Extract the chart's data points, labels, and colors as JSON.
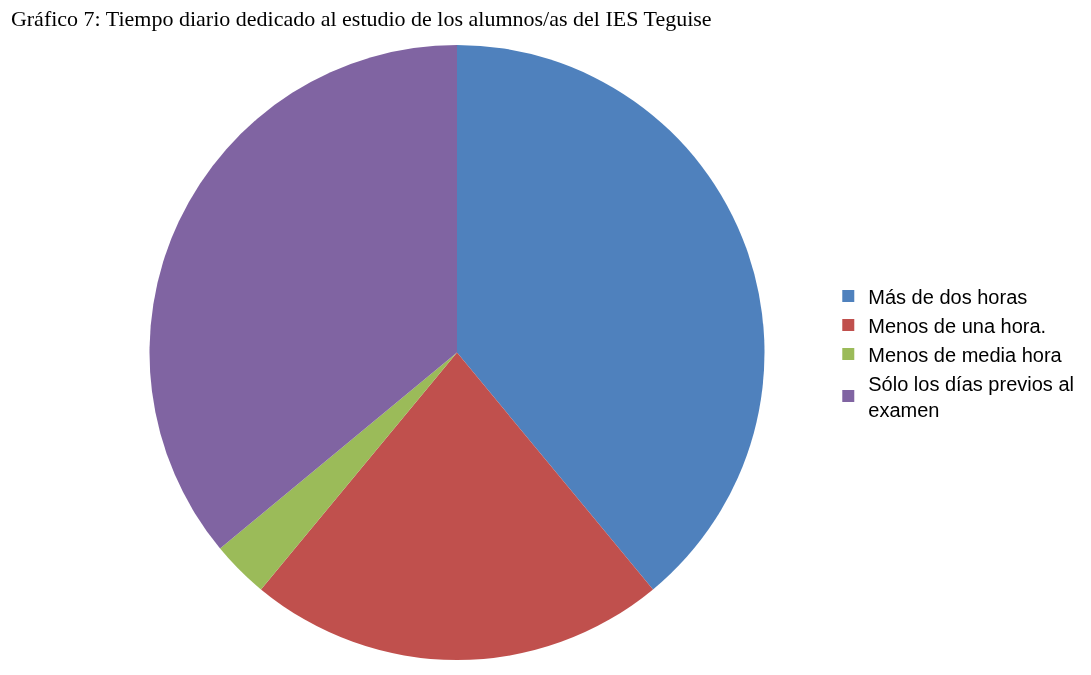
{
  "chart_data": {
    "type": "pie",
    "title": "Gráfico 7: Tiempo diario dedicado al estudio de los alumnos/as del IES Teguise",
    "categories": [
      "Más de dos horas",
      "Menos de una hora.",
      "Menos de media hora",
      "Sólo los días previos al examen"
    ],
    "values": [
      39,
      22,
      3,
      36
    ],
    "colors": [
      "#4f81bd",
      "#c0504d",
      "#9bbb59",
      "#8064a2"
    ],
    "legend": "right"
  }
}
